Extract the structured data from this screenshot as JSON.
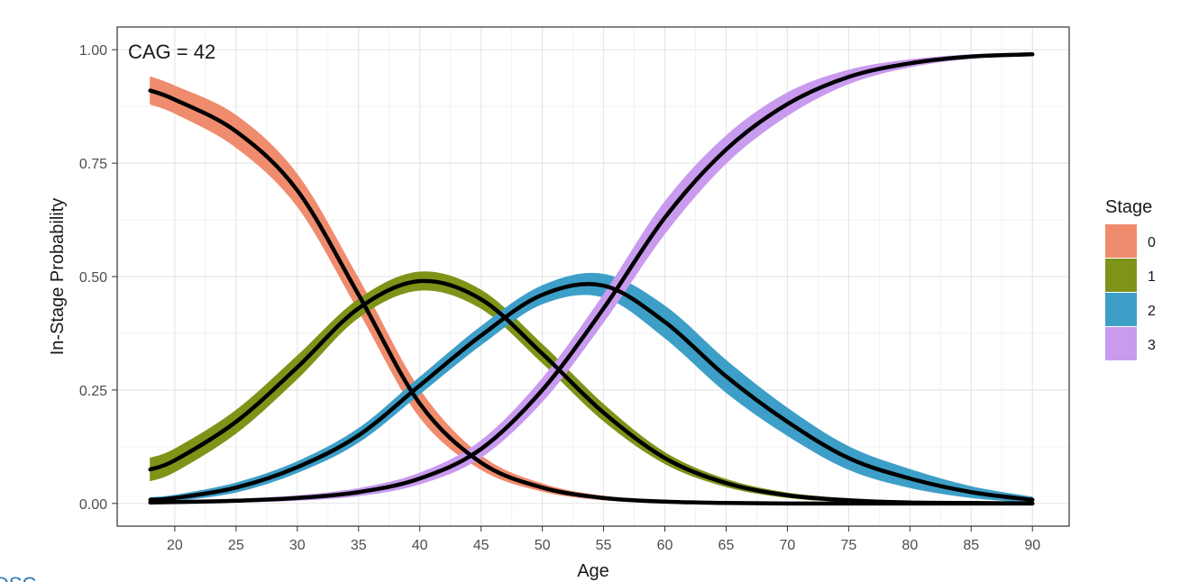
{
  "chart_data": {
    "type": "line",
    "title": "",
    "annotation": "CAG = 42",
    "xlabel": "Age",
    "ylabel": "In-Stage Probability",
    "xlim": [
      18,
      90
    ],
    "ylim": [
      0,
      1
    ],
    "x_ticks": [
      20,
      25,
      30,
      35,
      40,
      45,
      50,
      55,
      60,
      65,
      70,
      75,
      80,
      85,
      90
    ],
    "x_tick_labels": [
      "20",
      "25",
      "30",
      "35",
      "40",
      "45",
      "50",
      "55",
      "60",
      "65",
      "70",
      "75",
      "80",
      "85",
      "90"
    ],
    "y_ticks": [
      0,
      0.25,
      0.5,
      0.75,
      1.0
    ],
    "y_tick_labels": [
      "0.00",
      "0.25",
      "0.50",
      "0.75",
      "1.00"
    ],
    "grid": true,
    "legend": {
      "title": "Stage",
      "position": "right"
    },
    "x": [
      18,
      20,
      25,
      30,
      35,
      40,
      45,
      50,
      55,
      60,
      65,
      70,
      75,
      80,
      85,
      90
    ],
    "series": [
      {
        "name": "0",
        "color": "#F08C6E",
        "values": [
          0.91,
          0.89,
          0.82,
          0.69,
          0.46,
          0.22,
          0.09,
          0.035,
          0.012,
          0.004,
          0.001,
          0.0,
          0.0,
          0.0,
          0.0,
          0.0
        ],
        "band_half_width": [
          0.03,
          0.03,
          0.035,
          0.035,
          0.035,
          0.03,
          0.015,
          0.008,
          0.004,
          0.002,
          0.001,
          0.0,
          0.0,
          0.0,
          0.0,
          0.0
        ]
      },
      {
        "name": "1",
        "color": "#7D9419",
        "values": [
          0.075,
          0.095,
          0.18,
          0.3,
          0.43,
          0.49,
          0.45,
          0.33,
          0.2,
          0.1,
          0.045,
          0.018,
          0.007,
          0.002,
          0.001,
          0.0
        ],
        "band_half_width": [
          0.025,
          0.025,
          0.025,
          0.025,
          0.02,
          0.02,
          0.02,
          0.02,
          0.018,
          0.012,
          0.008,
          0.005,
          0.003,
          0.001,
          0.0,
          0.0
        ]
      },
      {
        "name": "2",
        "color": "#3D9FC8",
        "values": [
          0.008,
          0.012,
          0.035,
          0.08,
          0.15,
          0.26,
          0.37,
          0.46,
          0.48,
          0.4,
          0.28,
          0.18,
          0.1,
          0.055,
          0.025,
          0.008
        ],
        "band_half_width": [
          0.005,
          0.006,
          0.01,
          0.012,
          0.015,
          0.018,
          0.02,
          0.02,
          0.025,
          0.035,
          0.035,
          0.03,
          0.025,
          0.02,
          0.012,
          0.006
        ]
      },
      {
        "name": "3",
        "color": "#C99BEF",
        "values": [
          0.002,
          0.003,
          0.006,
          0.012,
          0.025,
          0.055,
          0.12,
          0.25,
          0.43,
          0.63,
          0.78,
          0.88,
          0.94,
          0.97,
          0.985,
          0.99
        ],
        "band_half_width": [
          0.002,
          0.002,
          0.003,
          0.005,
          0.008,
          0.012,
          0.018,
          0.025,
          0.03,
          0.035,
          0.03,
          0.025,
          0.015,
          0.008,
          0.004,
          0.003
        ]
      }
    ]
  },
  "footer": {
    "corner_mark": "DSC"
  }
}
